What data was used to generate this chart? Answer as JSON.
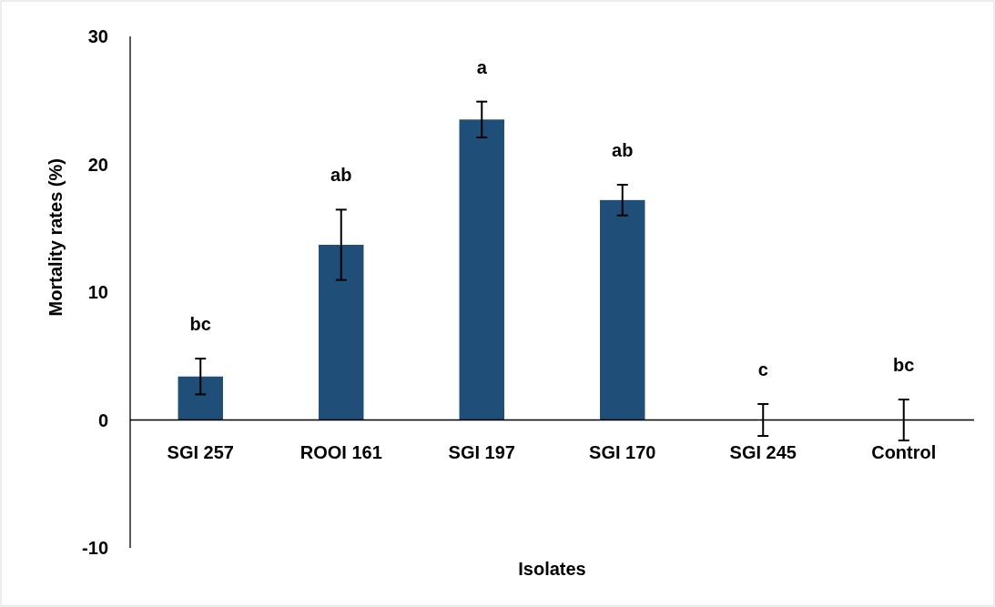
{
  "chart_data": {
    "type": "bar",
    "xlabel": "Isolates",
    "ylabel": "Mortality rates (%)",
    "categories": [
      "SGI 257",
      "ROOI 161",
      "SGI 197",
      "SGI 170",
      "SGI 245",
      "Control"
    ],
    "series": [
      {
        "color": "#1f4e79",
        "values": [
          3.4,
          13.7,
          23.5,
          17.2,
          0,
          0
        ],
        "errors": [
          1.4,
          2.75,
          1.4,
          1.2,
          1.25,
          1.6
        ]
      }
    ],
    "ylim": [
      -10,
      30
    ],
    "yticks": [
      -10,
      0,
      10,
      20,
      30
    ],
    "annotations": [
      "bc",
      "ab",
      "a",
      "ab",
      "c",
      "bc"
    ]
  }
}
